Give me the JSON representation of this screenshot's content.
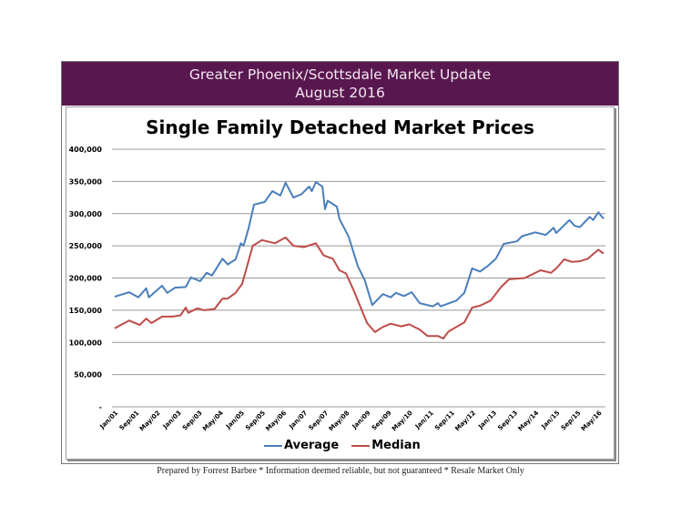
{
  "header": {
    "line1": "Greater Phoenix/Scottsdale Market Update",
    "line2": "August 2016"
  },
  "footer": "Prepared by Forrest Barbee * Information deemed reliable, but not guaranteed * Resale Market Only",
  "chart_data": {
    "type": "line",
    "title": "Single Family Detached Market Prices",
    "xlabel": "",
    "ylabel": "",
    "x_unit": "months since Jan 2001 (monthly, Jan/01 to ~Jul/16)",
    "xlim": [
      0,
      186
    ],
    "ylim": [
      0,
      400000
    ],
    "yticks": [
      0,
      50000,
      100000,
      150000,
      200000,
      250000,
      300000,
      350000,
      400000
    ],
    "ytick_labels": [
      "-",
      "50,000",
      "100,000",
      "150,000",
      "200,000",
      "250,000",
      "300,000",
      "350,000",
      "400,000"
    ],
    "xticks": [
      0,
      8,
      16,
      24,
      32,
      40,
      48,
      56,
      64,
      72,
      80,
      88,
      96,
      104,
      112,
      120,
      128,
      136,
      144,
      152,
      160,
      168,
      176,
      184
    ],
    "xtick_labels": [
      "Jan/01",
      "Sep/01",
      "May/02",
      "Jan/03",
      "Sep/03",
      "May/04",
      "Jan/05",
      "Sep/05",
      "May/06",
      "Jan/07",
      "Sep/07",
      "May/08",
      "Jan/09",
      "Sep/09",
      "May/10",
      "Jan/11",
      "Sep/11",
      "May/12",
      "Jan/13",
      "Sep/13",
      "May/14",
      "Jan/15",
      "Sep/15",
      "May/16"
    ],
    "grid": true,
    "legend_position": "bottom",
    "series": [
      {
        "name": "Average",
        "color": "#4a7ebb",
        "points": [
          [
            0,
            171000
          ],
          [
            5.5,
            178000
          ],
          [
            9,
            170000
          ],
          [
            12,
            184000
          ],
          [
            13,
            170000
          ],
          [
            18,
            188000
          ],
          [
            20,
            177000
          ],
          [
            23,
            185000
          ],
          [
            27,
            186000
          ],
          [
            29,
            201000
          ],
          [
            32.5,
            195000
          ],
          [
            35,
            208000
          ],
          [
            37,
            204000
          ],
          [
            41,
            230000
          ],
          [
            43,
            221000
          ],
          [
            46,
            229000
          ],
          [
            48,
            254000
          ],
          [
            49,
            250000
          ],
          [
            51,
            278000
          ],
          [
            53,
            314000
          ],
          [
            57,
            318000
          ],
          [
            60,
            335000
          ],
          [
            63,
            328000
          ],
          [
            65,
            348000
          ],
          [
            68,
            325000
          ],
          [
            71,
            330000
          ],
          [
            74,
            342000
          ],
          [
            75,
            335000
          ],
          [
            76.5,
            349000
          ],
          [
            79,
            342000
          ],
          [
            80,
            307000
          ],
          [
            81,
            320000
          ],
          [
            84.5,
            311000
          ],
          [
            85.5,
            292000
          ],
          [
            89,
            264000
          ],
          [
            92.5,
            218000
          ],
          [
            95,
            198000
          ],
          [
            98,
            158000
          ],
          [
            102,
            175000
          ],
          [
            105,
            170000
          ],
          [
            107,
            177000
          ],
          [
            110,
            172000
          ],
          [
            113,
            178000
          ],
          [
            116,
            161000
          ],
          [
            121,
            156000
          ],
          [
            123,
            161000
          ],
          [
            124,
            156000
          ],
          [
            130,
            165000
          ],
          [
            133,
            177000
          ],
          [
            136,
            215000
          ],
          [
            139,
            210000
          ],
          [
            142,
            219000
          ],
          [
            145,
            230000
          ],
          [
            148,
            253000
          ],
          [
            153,
            257000
          ],
          [
            155,
            265000
          ],
          [
            160,
            271000
          ],
          [
            164,
            267000
          ],
          [
            167,
            278000
          ],
          [
            168,
            270000
          ],
          [
            173,
            290000
          ],
          [
            175,
            281000
          ],
          [
            177,
            279000
          ],
          [
            180.7,
            295000
          ],
          [
            182,
            290000
          ],
          [
            184,
            302000
          ],
          [
            186,
            292000
          ]
        ]
      },
      {
        "name": "Median",
        "color": "#be4b48",
        "points": [
          [
            0,
            122000
          ],
          [
            5.5,
            134000
          ],
          [
            9.5,
            127000
          ],
          [
            12,
            137000
          ],
          [
            14,
            130000
          ],
          [
            18,
            140000
          ],
          [
            22,
            140000
          ],
          [
            25,
            142000
          ],
          [
            27,
            154000
          ],
          [
            28,
            146000
          ],
          [
            31.5,
            153000
          ],
          [
            34,
            150000
          ],
          [
            38,
            152000
          ],
          [
            41,
            168000
          ],
          [
            43,
            168000
          ],
          [
            46,
            177000
          ],
          [
            48.5,
            191000
          ],
          [
            52.5,
            250000
          ],
          [
            56,
            259000
          ],
          [
            61,
            254000
          ],
          [
            65,
            263000
          ],
          [
            68,
            250000
          ],
          [
            72,
            248000
          ],
          [
            76.5,
            254000
          ],
          [
            79.5,
            235000
          ],
          [
            83,
            230000
          ],
          [
            85.5,
            212000
          ],
          [
            88,
            207000
          ],
          [
            91,
            180000
          ],
          [
            96,
            130000
          ],
          [
            99,
            116000
          ],
          [
            102,
            124000
          ],
          [
            105,
            129000
          ],
          [
            109,
            125000
          ],
          [
            112,
            128000
          ],
          [
            116,
            120000
          ],
          [
            119,
            110000
          ],
          [
            123,
            110000
          ],
          [
            125,
            106000
          ],
          [
            127,
            117000
          ],
          [
            133,
            131000
          ],
          [
            136,
            154000
          ],
          [
            139,
            157000
          ],
          [
            143,
            165000
          ],
          [
            147,
            186000
          ],
          [
            150,
            198000
          ],
          [
            156,
            200000
          ],
          [
            158,
            204000
          ],
          [
            162,
            212000
          ],
          [
            166,
            208000
          ],
          [
            168,
            215000
          ],
          [
            171,
            229000
          ],
          [
            174,
            225000
          ],
          [
            177,
            226000
          ],
          [
            180,
            230000
          ],
          [
            184,
            244000
          ],
          [
            186,
            238000
          ]
        ]
      }
    ]
  }
}
